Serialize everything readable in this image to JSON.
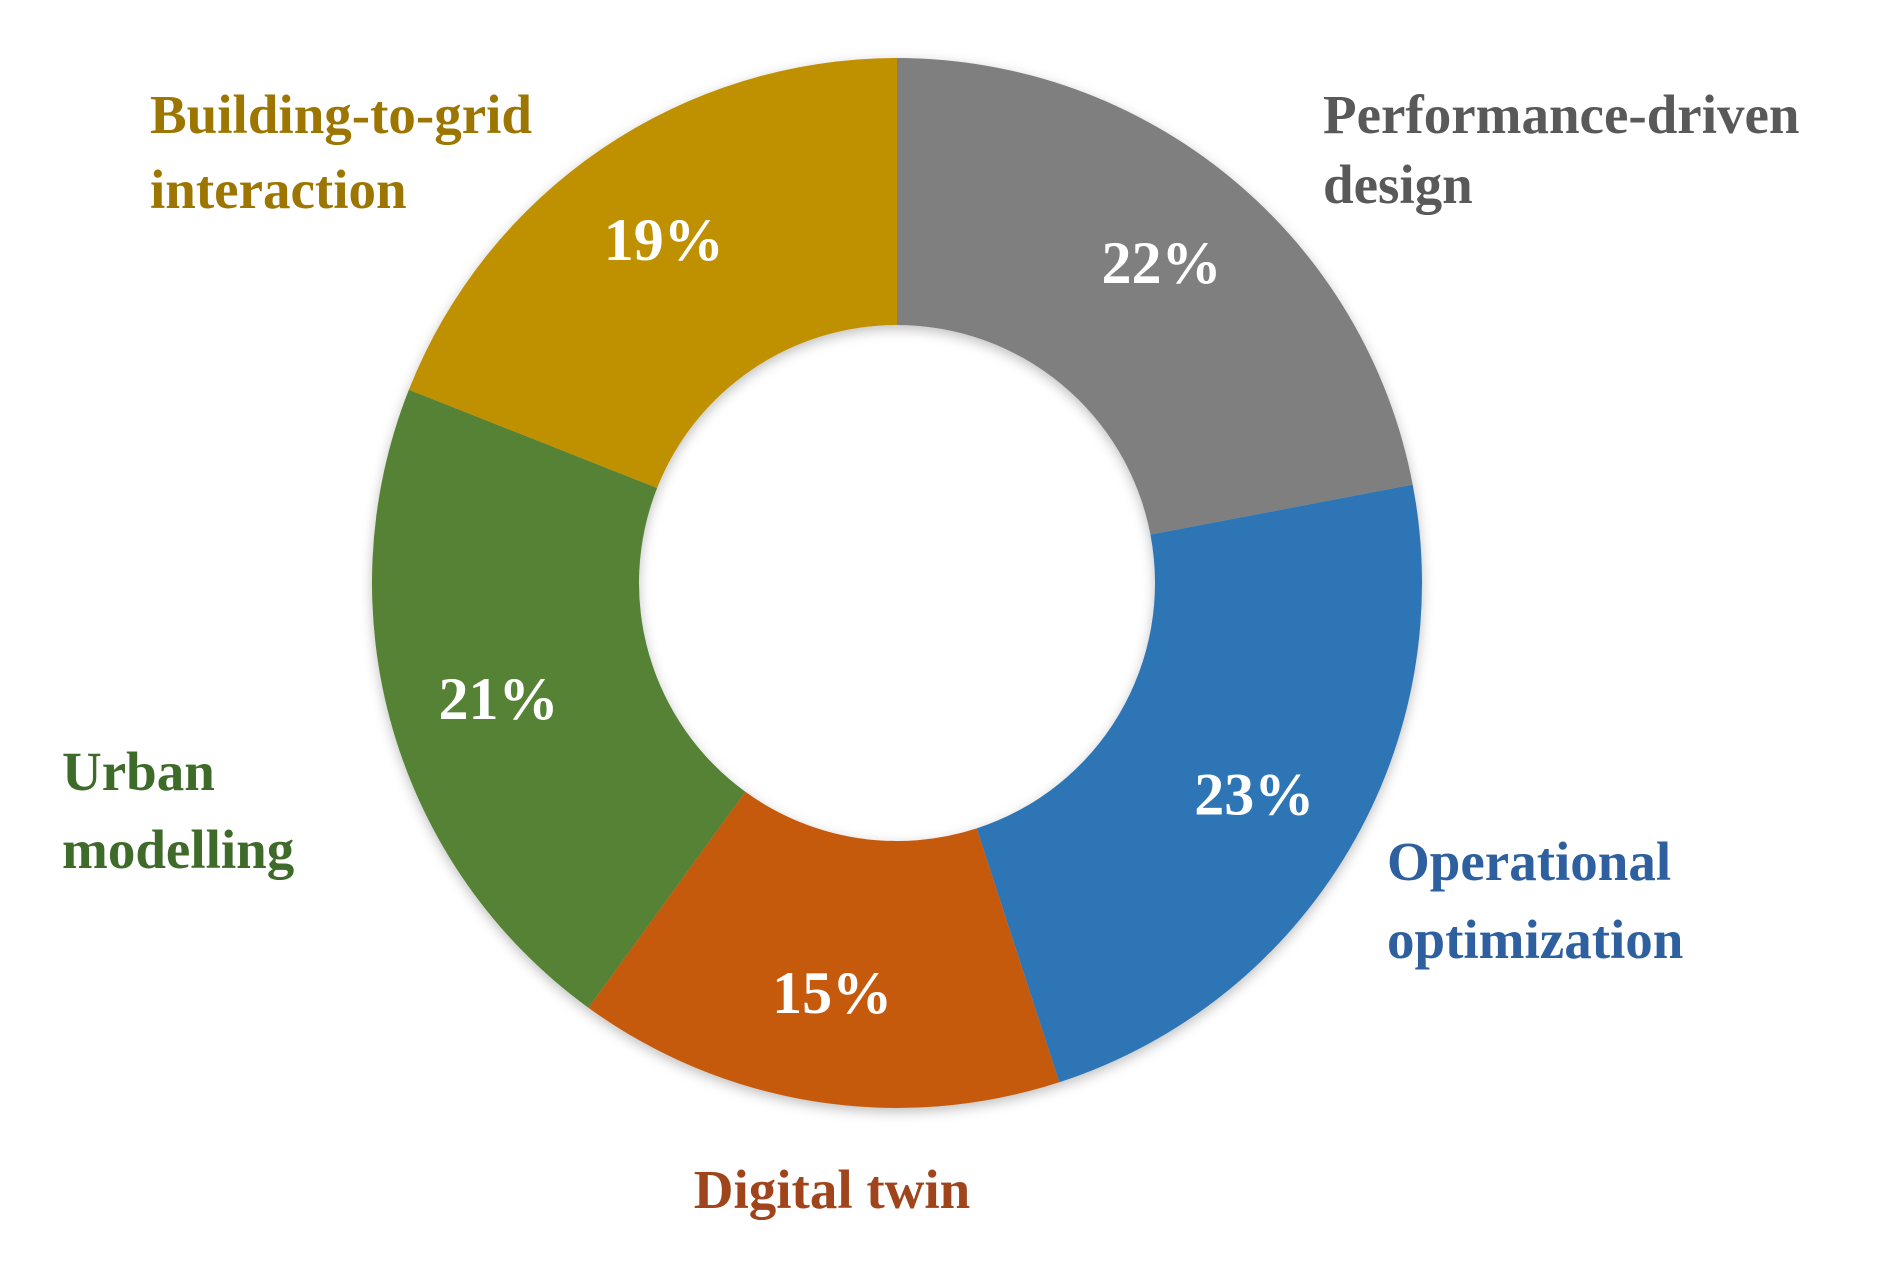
{
  "chart_data": {
    "type": "pie",
    "variant": "donut",
    "slices": [
      {
        "category": "Performance-driven design",
        "label_lines": [
          "Performance-driven",
          "design"
        ],
        "value": 22,
        "value_label": "22%",
        "color": "#7f7f7f"
      },
      {
        "category": "Operational optimization",
        "label_lines": [
          "Operational",
          "optimization"
        ],
        "value": 23,
        "value_label": "23%",
        "color": "#2e75b6"
      },
      {
        "category": "Digital twin",
        "label_lines": [
          "Digital twin"
        ],
        "value": 15,
        "value_label": "15%",
        "color": "#c55a11"
      },
      {
        "category": "Urban modelling",
        "label_lines": [
          "Urban",
          "modelling"
        ],
        "value": 21,
        "value_label": "21%",
        "color": "#548235"
      },
      {
        "category": "Building-to-grid interaction",
        "label_lines": [
          "Building-to-grid",
          "interaction"
        ],
        "value": 19,
        "value_label": "19%",
        "color": "#bf9000"
      }
    ],
    "label_colors": {
      "Performance-driven design": "#595959",
      "Operational optimization": "#2e5f9e",
      "Digital twin": "#a0441c",
      "Urban modelling": "#3f6b2a",
      "Building-to-grid interaction": "#9c7600"
    },
    "start_direction": "top",
    "order": "clockwise",
    "value_label_color": "#ffffff"
  }
}
